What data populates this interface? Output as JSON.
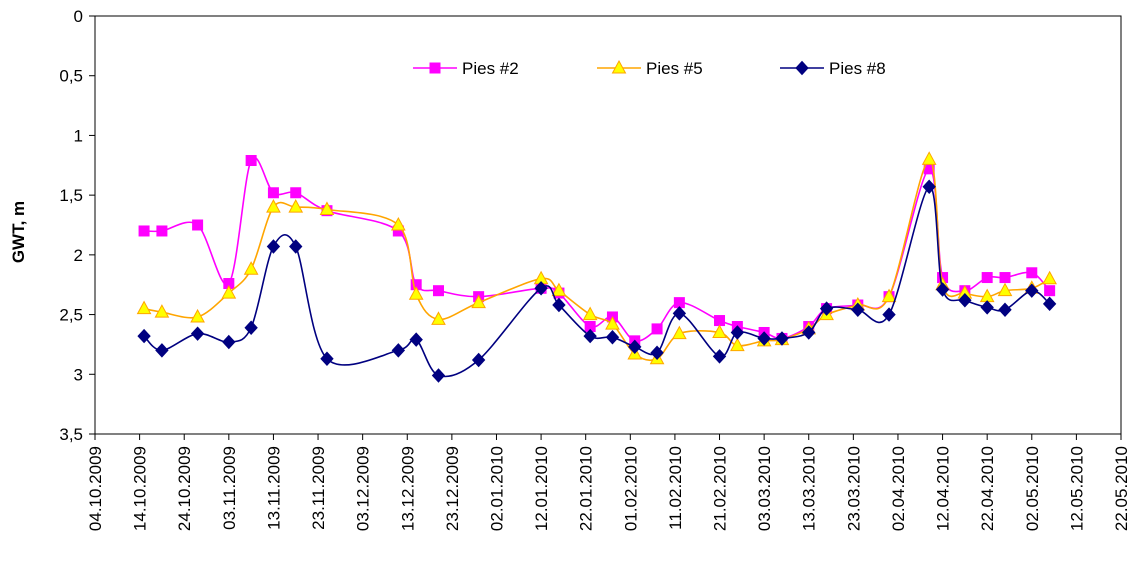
{
  "chart_data": {
    "type": "line",
    "title": "",
    "xlabel": "",
    "ylabel": "GWT, m",
    "y_inverted": true,
    "ylim": [
      0,
      3.5
    ],
    "y_ticks": [
      "0",
      "0,5",
      "1",
      "1,5",
      "2",
      "2,5",
      "3",
      "3,5"
    ],
    "y_tick_values": [
      0,
      0.5,
      1,
      1.5,
      2,
      2.5,
      3,
      3.5
    ],
    "x_ticks": [
      "04.10.2009",
      "14.10.2009",
      "24.10.2009",
      "03.11.2009",
      "13.11.2009",
      "23.11.2009",
      "03.12.2009",
      "13.12.2009",
      "23.12.2009",
      "02.01.2010",
      "12.01.2010",
      "22.01.2010",
      "01.02.2010",
      "11.02.2010",
      "21.02.2010",
      "03.03.2010",
      "13.03.2010",
      "23.03.2010",
      "02.04.2010",
      "12.04.2010",
      "22.04.2010",
      "02.05.2010",
      "12.05.2010",
      "22.05.2010"
    ],
    "xlim": [
      "2009-10-04",
      "2010-05-22"
    ],
    "grid": false,
    "legend_position": "top",
    "series": [
      {
        "name": "Pies #2",
        "color": "#ff00ff",
        "marker": "square",
        "points": [
          [
            "2009-10-15",
            1.8
          ],
          [
            "2009-10-19",
            1.8
          ],
          [
            "2009-10-27",
            1.75
          ],
          [
            "2009-11-03",
            2.24
          ],
          [
            "2009-11-08",
            1.21
          ],
          [
            "2009-11-13",
            1.48
          ],
          [
            "2009-11-18",
            1.48
          ],
          [
            "2009-11-25",
            1.63
          ],
          [
            "2009-12-11",
            1.8
          ],
          [
            "2009-12-15",
            2.25
          ],
          [
            "2009-12-20",
            2.3
          ],
          [
            "2009-12-29",
            2.35
          ],
          [
            "2010-01-12",
            2.28
          ],
          [
            "2010-01-16",
            2.32
          ],
          [
            "2010-01-23",
            2.6
          ],
          [
            "2010-01-28",
            2.52
          ],
          [
            "2010-02-02",
            2.72
          ],
          [
            "2010-02-07",
            2.62
          ],
          [
            "2010-02-12",
            2.4
          ],
          [
            "2010-02-21",
            2.55
          ],
          [
            "2010-02-25",
            2.6
          ],
          [
            "2010-03-03",
            2.65
          ],
          [
            "2010-03-07",
            2.7
          ],
          [
            "2010-03-13",
            2.6
          ],
          [
            "2010-03-17",
            2.45
          ],
          [
            "2010-03-24",
            2.42
          ],
          [
            "2010-03-31",
            2.35
          ],
          [
            "2010-04-09",
            1.28
          ],
          [
            "2010-04-12",
            2.19
          ],
          [
            "2010-04-17",
            2.3
          ],
          [
            "2010-04-22",
            2.19
          ],
          [
            "2010-04-26",
            2.19
          ],
          [
            "2010-05-02",
            2.15
          ],
          [
            "2010-05-06",
            2.3
          ]
        ]
      },
      {
        "name": "Pies #5",
        "color": "#ffa500",
        "marker_fill": "#ffff00",
        "marker": "triangle",
        "points": [
          [
            "2009-10-15",
            2.45
          ],
          [
            "2009-10-19",
            2.48
          ],
          [
            "2009-10-27",
            2.52
          ],
          [
            "2009-11-03",
            2.32
          ],
          [
            "2009-11-08",
            2.12
          ],
          [
            "2009-11-13",
            1.6
          ],
          [
            "2009-11-18",
            1.6
          ],
          [
            "2009-11-25",
            1.62
          ],
          [
            "2009-12-11",
            1.75
          ],
          [
            "2009-12-15",
            2.33
          ],
          [
            "2009-12-20",
            2.54
          ],
          [
            "2009-12-29",
            2.4
          ],
          [
            "2010-01-12",
            2.2
          ],
          [
            "2010-01-16",
            2.3
          ],
          [
            "2010-01-23",
            2.5
          ],
          [
            "2010-01-28",
            2.58
          ],
          [
            "2010-02-02",
            2.83
          ],
          [
            "2010-02-07",
            2.87
          ],
          [
            "2010-02-12",
            2.66
          ],
          [
            "2010-02-21",
            2.65
          ],
          [
            "2010-02-25",
            2.76
          ],
          [
            "2010-03-03",
            2.72
          ],
          [
            "2010-03-07",
            2.71
          ],
          [
            "2010-03-13",
            2.62
          ],
          [
            "2010-03-17",
            2.5
          ],
          [
            "2010-03-24",
            2.42
          ],
          [
            "2010-03-31",
            2.35
          ],
          [
            "2010-04-09",
            1.2
          ],
          [
            "2010-04-12",
            2.25
          ],
          [
            "2010-04-17",
            2.32
          ],
          [
            "2010-04-22",
            2.35
          ],
          [
            "2010-04-26",
            2.3
          ],
          [
            "2010-05-02",
            2.28
          ],
          [
            "2010-05-06",
            2.2
          ]
        ]
      },
      {
        "name": "Pies #8",
        "color": "#000080",
        "marker": "diamond",
        "points": [
          [
            "2009-10-15",
            2.68
          ],
          [
            "2009-10-19",
            2.8
          ],
          [
            "2009-10-27",
            2.66
          ],
          [
            "2009-11-03",
            2.73
          ],
          [
            "2009-11-08",
            2.61
          ],
          [
            "2009-11-13",
            1.93
          ],
          [
            "2009-11-18",
            1.93
          ],
          [
            "2009-11-25",
            2.87
          ],
          [
            "2009-12-11",
            2.8
          ],
          [
            "2009-12-15",
            2.71
          ],
          [
            "2009-12-20",
            3.01
          ],
          [
            "2009-12-29",
            2.88
          ],
          [
            "2010-01-12",
            2.28
          ],
          [
            "2010-01-16",
            2.42
          ],
          [
            "2010-01-23",
            2.68
          ],
          [
            "2010-01-28",
            2.69
          ],
          [
            "2010-02-02",
            2.77
          ],
          [
            "2010-02-07",
            2.82
          ],
          [
            "2010-02-12",
            2.49
          ],
          [
            "2010-02-21",
            2.85
          ],
          [
            "2010-02-25",
            2.65
          ],
          [
            "2010-03-03",
            2.7
          ],
          [
            "2010-03-07",
            2.7
          ],
          [
            "2010-03-13",
            2.65
          ],
          [
            "2010-03-17",
            2.45
          ],
          [
            "2010-03-24",
            2.46
          ],
          [
            "2010-03-31",
            2.5
          ],
          [
            "2010-04-09",
            1.43
          ],
          [
            "2010-04-12",
            2.29
          ],
          [
            "2010-04-17",
            2.38
          ],
          [
            "2010-04-22",
            2.44
          ],
          [
            "2010-04-26",
            2.46
          ],
          [
            "2010-05-02",
            2.3
          ],
          [
            "2010-05-06",
            2.41
          ]
        ]
      }
    ]
  }
}
